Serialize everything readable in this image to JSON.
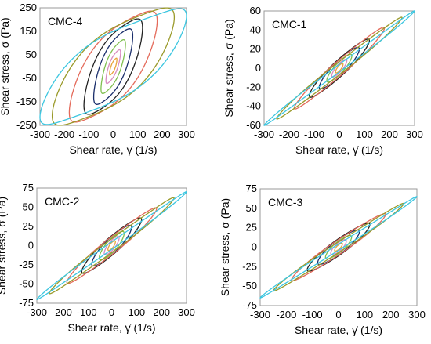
{
  "chart_data": [
    {
      "type": "line",
      "panel_label": "CMC-4",
      "xlabel": "Shear rate, γ̇ (1/s)",
      "ylabel": "Shear stress, σ (Pa)",
      "xlim": [
        -300,
        300
      ],
      "ylim": [
        -250,
        250
      ],
      "xticks": [
        "-300",
        "-200",
        "-100",
        "0",
        "100",
        "200",
        "300"
      ],
      "yticks": [
        "250",
        "150",
        "50",
        "-50",
        "-150",
        "-250"
      ],
      "ytick_values": [
        250,
        150,
        50,
        -50,
        -150,
        -250
      ],
      "grid": false,
      "series_description": "Lissajous loops of shear stress vs shear rate at increasing strain amplitudes",
      "loops": [
        {
          "gamma0": 15,
          "sigma0": 30,
          "tilt": 0.8,
          "half_width": 22
        },
        {
          "gamma0": 30,
          "sigma0": 60,
          "tilt": 0.8,
          "half_width": 45
        },
        {
          "gamma0": 50,
          "sigma0": 95,
          "tilt": 0.75,
          "half_width": 75
        },
        {
          "gamma0": 80,
          "sigma0": 130,
          "tilt": 0.75,
          "half_width": 110
        },
        {
          "gamma0": 120,
          "sigma0": 165,
          "tilt": 0.72,
          "half_width": 140
        },
        {
          "gamma0": 180,
          "sigma0": 195,
          "tilt": 0.7,
          "half_width": 160
        },
        {
          "gamma0": 250,
          "sigma0": 210,
          "tilt": 0.68,
          "half_width": 165
        },
        {
          "gamma0": 300,
          "sigma0": 215,
          "tilt": 0.66,
          "half_width": 150
        }
      ]
    },
    {
      "type": "line",
      "panel_label": "CMC-1",
      "xlabel": "Shear rate, γ̇ (1/s)",
      "ylabel": "Shear stress, σ (Pa)",
      "xlim": [
        -300,
        300
      ],
      "ylim": [
        -60,
        60
      ],
      "xticks": [
        "-300",
        "-200",
        "-100",
        "0",
        "100",
        "200",
        "300"
      ],
      "yticks": [
        "60",
        "40",
        "20",
        "0",
        "-20",
        "-40",
        "-60"
      ],
      "ytick_values": [
        60,
        40,
        20,
        0,
        -20,
        -40,
        -60
      ],
      "grid": false,
      "series_description": "Lissajous loops of shear stress vs shear rate at increasing strain amplitudes",
      "loops": [
        {
          "gamma0": 15,
          "sigma0": 4,
          "tilt": 0.95,
          "half_width": 3
        },
        {
          "gamma0": 30,
          "sigma0": 8,
          "tilt": 0.95,
          "half_width": 5
        },
        {
          "gamma0": 50,
          "sigma0": 13,
          "tilt": 0.95,
          "half_width": 7
        },
        {
          "gamma0": 80,
          "sigma0": 20,
          "tilt": 0.95,
          "half_width": 9
        },
        {
          "gamma0": 120,
          "sigma0": 29,
          "tilt": 0.95,
          "half_width": 10
        },
        {
          "gamma0": 180,
          "sigma0": 42,
          "tilt": 0.95,
          "half_width": 9
        },
        {
          "gamma0": 250,
          "sigma0": 53,
          "tilt": 0.96,
          "half_width": 7
        },
        {
          "gamma0": 300,
          "sigma0": 60,
          "tilt": 0.97,
          "half_width": 4
        }
      ]
    },
    {
      "type": "line",
      "panel_label": "CMC-2",
      "xlabel": "Shear rate, γ̇ (1/s)",
      "ylabel": "Shear stress, σ (Pa)",
      "xlim": [
        -300,
        300
      ],
      "ylim": [
        -75,
        75
      ],
      "xticks": [
        "-300",
        "-200",
        "-100",
        "0",
        "100",
        "200",
        "300"
      ],
      "yticks": [
        "75",
        "50",
        "25",
        "0",
        "-25",
        "-50",
        "-75"
      ],
      "ytick_values": [
        75,
        50,
        25,
        0,
        -25,
        -50,
        -75
      ],
      "grid": false,
      "series_description": "Lissajous loops of shear stress vs shear rate at increasing strain amplitudes",
      "loops": [
        {
          "gamma0": 15,
          "sigma0": 5,
          "tilt": 0.92,
          "half_width": 4
        },
        {
          "gamma0": 30,
          "sigma0": 10,
          "tilt": 0.92,
          "half_width": 7
        },
        {
          "gamma0": 50,
          "sigma0": 16,
          "tilt": 0.92,
          "half_width": 10
        },
        {
          "gamma0": 80,
          "sigma0": 24,
          "tilt": 0.92,
          "half_width": 12
        },
        {
          "gamma0": 120,
          "sigma0": 34,
          "tilt": 0.93,
          "half_width": 13
        },
        {
          "gamma0": 180,
          "sigma0": 48,
          "tilt": 0.94,
          "half_width": 12
        },
        {
          "gamma0": 250,
          "sigma0": 62,
          "tilt": 0.95,
          "half_width": 9
        },
        {
          "gamma0": 300,
          "sigma0": 70,
          "tilt": 0.97,
          "half_width": 5
        }
      ]
    },
    {
      "type": "line",
      "panel_label": "CMC-3",
      "xlabel": "Shear rate, γ̇ (1/s)",
      "ylabel": "Shear stress, σ (Pa)",
      "xlim": [
        -300,
        300
      ],
      "ylim": [
        -75,
        75
      ],
      "xticks": [
        "-300",
        "-200",
        "-100",
        "0",
        "100",
        "200",
        "300"
      ],
      "yticks": [
        "75",
        "50",
        "25",
        "0",
        "-25",
        "-50",
        "-75"
      ],
      "ytick_values": [
        75,
        50,
        25,
        0,
        -25,
        -50,
        -75
      ],
      "grid": false,
      "series_description": "Lissajous loops of shear stress vs shear rate at increasing strain amplitudes",
      "loops": [
        {
          "gamma0": 15,
          "sigma0": 4,
          "tilt": 0.93,
          "half_width": 3
        },
        {
          "gamma0": 30,
          "sigma0": 8,
          "tilt": 0.93,
          "half_width": 6
        },
        {
          "gamma0": 50,
          "sigma0": 13,
          "tilt": 0.93,
          "half_width": 8
        },
        {
          "gamma0": 80,
          "sigma0": 20,
          "tilt": 0.93,
          "half_width": 10
        },
        {
          "gamma0": 120,
          "sigma0": 29,
          "tilt": 0.94,
          "half_width": 11
        },
        {
          "gamma0": 180,
          "sigma0": 42,
          "tilt": 0.95,
          "half_width": 10
        },
        {
          "gamma0": 250,
          "sigma0": 56,
          "tilt": 0.96,
          "half_width": 7
        },
        {
          "gamma0": 300,
          "sigma0": 65,
          "tilt": 0.97,
          "half_width": 4
        }
      ]
    }
  ],
  "colors": {
    "loop_palette": [
      "#e8a33a",
      "#d98cc0",
      "#7fbf4f",
      "#1a2e6b",
      "#222222",
      "#e46a5a",
      "#9a9a2a",
      "#3cc6e0"
    ],
    "axis": "#999999"
  }
}
